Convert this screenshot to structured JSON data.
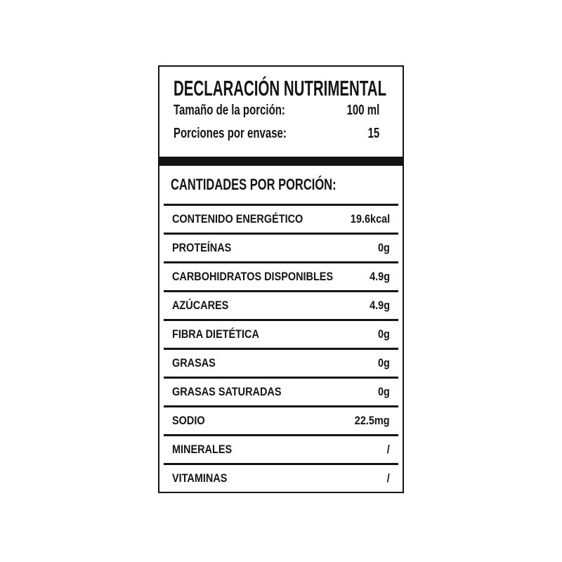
{
  "colors": {
    "ink": "#141414",
    "background": "#ffffff"
  },
  "label": {
    "title": "DECLARACIÓN NUTRIMENTAL",
    "serving_info": [
      {
        "label": "Tamaño de la porción:",
        "value": "100 ml"
      },
      {
        "label": "Porciones por envase:",
        "value": "15"
      }
    ],
    "section_heading": "CANTIDADES POR PORCIÓN:",
    "nutrients": [
      {
        "label": "CONTENIDO ENERGÉTICO",
        "value": "19.6kcal"
      },
      {
        "label": "PROTEÍNAS",
        "value": "0g"
      },
      {
        "label": "CARBOHIDRATOS DISPONIBLES",
        "value": "4.9g"
      },
      {
        "label": "AZÚCARES",
        "value": "4.9g"
      },
      {
        "label": "FIBRA DIETÉTICA",
        "value": "0g"
      },
      {
        "label": "GRASAS",
        "value": "0g"
      },
      {
        "label": "GRASAS SATURADAS",
        "value": "0g"
      },
      {
        "label": "SODIO",
        "value": "22.5mg"
      },
      {
        "label": "MINERALES",
        "value": "/"
      },
      {
        "label": "VITAMINAS",
        "value": "/"
      }
    ]
  }
}
